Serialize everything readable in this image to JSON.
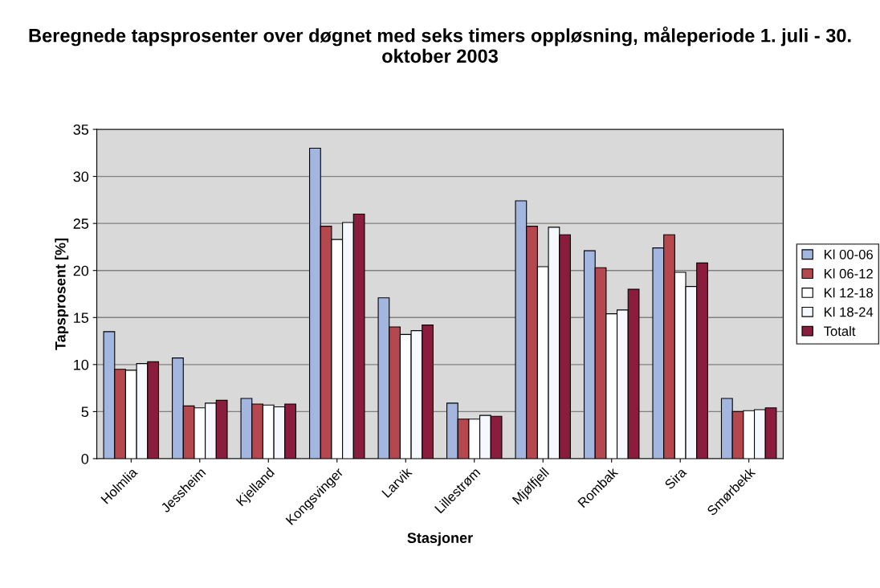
{
  "chart_data": {
    "type": "bar",
    "title": "Beregnede tapsprosenter over døgnet med seks timers oppløsning, måleperiode 1. juli - 30. oktober 2003",
    "xlabel": "Stasjoner",
    "ylabel": "Tapsprosent [%]",
    "categories": [
      "Holmlia",
      "Jessheim",
      "Kjelland",
      "Kongsvinger",
      "Larvik",
      "Lillestrøm",
      "Mjølfjell",
      "Rombak",
      "Sira",
      "Smørbekk"
    ],
    "series": [
      {
        "name": "Kl 00-06",
        "color": "#a3b6e0",
        "values": [
          13.5,
          10.7,
          6.4,
          33.0,
          17.1,
          5.9,
          27.4,
          22.1,
          22.4,
          6.4
        ]
      },
      {
        "name": "Kl 06-12",
        "color": "#b5474f",
        "values": [
          9.5,
          5.6,
          5.8,
          24.7,
          14.0,
          4.2,
          24.7,
          20.3,
          23.8,
          5.0
        ]
      },
      {
        "name": "Kl 12-18",
        "color": "#ffffff",
        "values": [
          9.4,
          5.4,
          5.7,
          23.3,
          13.2,
          4.2,
          20.4,
          15.4,
          19.8,
          5.1
        ]
      },
      {
        "name": "Kl 18-24",
        "color": "#f5f9ff",
        "values": [
          10.1,
          5.9,
          5.5,
          25.1,
          13.6,
          4.6,
          24.6,
          15.8,
          18.3,
          5.2
        ]
      },
      {
        "name": "Totalt",
        "color": "#8a1c3e",
        "values": [
          10.3,
          6.2,
          5.8,
          26.0,
          14.2,
          4.5,
          23.8,
          18.0,
          20.8,
          5.4
        ]
      }
    ],
    "ylim": [
      0,
      35
    ],
    "yticks": [
      0,
      5,
      10,
      15,
      20,
      25,
      30,
      35
    ],
    "grid": "y",
    "legend": "right"
  }
}
